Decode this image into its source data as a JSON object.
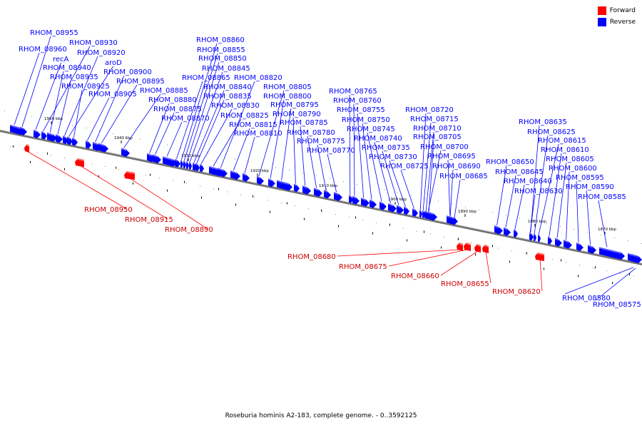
{
  "caption": "Roseburia hominis A2-183, complete genome. - 0..3592125",
  "legend": [
    {
      "label": "Forward",
      "color": "#ff0000"
    },
    {
      "label": "Reverse",
      "color": "#0000ff"
    }
  ],
  "colors": {
    "forward": "#ff0000",
    "reverse": "#0000ff",
    "axis": "#707070"
  },
  "scale_labels": [
    "1950 kbp",
    "1940 kbp",
    "1930 kbp",
    "1920 kbp",
    "1910 kbp",
    "1900 kbp",
    "1890 kbp",
    "1880 kbp",
    "1870 kbp"
  ],
  "reverse_genes": [
    "RHOM_08955",
    "RHOM_08960",
    "RHOM_08930",
    "recA",
    "RHOM_08920",
    "RHOM_08940",
    "aroD",
    "RHOM_08935",
    "RHOM_08900",
    "RHOM_08925",
    "RHOM_08895",
    "RHOM_08905",
    "RHOM_08885",
    "RHOM_08860",
    "RHOM_08855",
    "RHOM_08850",
    "RHOM_08845",
    "RHOM_08865",
    "RHOM_08840",
    "RHOM_08835",
    "RHOM_08880",
    "RHOM_08875",
    "RHOM_08830",
    "RHOM_08870",
    "RHOM_08825",
    "RHOM_08815",
    "RHOM_08810",
    "RHOM_08820",
    "RHOM_08805",
    "RHOM_08800",
    "RHOM_08795",
    "RHOM_08790",
    "RHOM_08785",
    "RHOM_08780",
    "RHOM_08775",
    "RHOM_08770",
    "RHOM_08765",
    "RHOM_08760",
    "RHOM_08755",
    "RHOM_08750",
    "RHOM_08745",
    "RHOM_08740",
    "RHOM_08735",
    "RHOM_08730",
    "RHOM_08725",
    "RHOM_08720",
    "RHOM_08715",
    "RHOM_08710",
    "RHOM_08705",
    "RHOM_08700",
    "RHOM_08695",
    "RHOM_08690",
    "RHOM_08685",
    "RHOM_08650",
    "RHOM_08645",
    "RHOM_08640",
    "RHOM_08630",
    "RHOM_08635",
    "RHOM_08625",
    "RHOM_08615",
    "RHOM_08610",
    "RHOM_08605",
    "RHOM_08600",
    "RHOM_08595",
    "RHOM_08590",
    "RHOM_08585",
    "RHOM_08580",
    "RHOM_08575"
  ],
  "forward_genes": [
    "RHOM_08950",
    "RHOM_08915",
    "RHOM_08890",
    "RHOM_08680",
    "RHOM_08675",
    "RHOM_08660",
    "RHOM_08655",
    "RHOM_08620"
  ]
}
